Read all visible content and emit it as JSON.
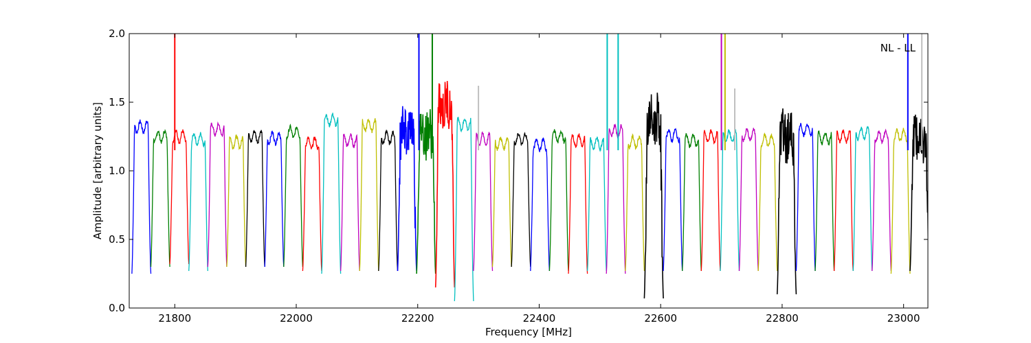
{
  "chart_data": {
    "type": "line",
    "title": "",
    "xlabel": "Frequency [MHz]",
    "ylabel": "Amplitude [arbitrary units]",
    "annotation": "NL - LL",
    "xlim": [
      21725,
      23040
    ],
    "ylim": [
      0.0,
      2.0
    ],
    "x_ticks": [
      21800,
      22000,
      22200,
      22400,
      22600,
      22800,
      23000
    ],
    "y_ticks": [
      0.0,
      0.5,
      1.0,
      1.5,
      2.0
    ],
    "x_tick_labels": [
      "21800",
      "22000",
      "22200",
      "22400",
      "22600",
      "22800",
      "23000"
    ],
    "y_tick_labels": [
      "0.0",
      "0.5",
      "1.0",
      "1.5",
      "2.0"
    ],
    "grid": false,
    "legend": "none",
    "channel_spacing_mhz": 31.25,
    "first_channel_center_mhz": 21745,
    "channel_count": 42,
    "color_cycle": [
      "#0000ff",
      "#007f00",
      "#ff0000",
      "#00bfbf",
      "#bf00bf",
      "#bfbf00",
      "#000000"
    ],
    "channel_peak_amplitudes": [
      1.32,
      1.25,
      1.25,
      1.23,
      1.3,
      1.21,
      1.25,
      1.24,
      1.28,
      1.2,
      1.37,
      1.22,
      1.33,
      1.24,
      1.3,
      1.28,
      1.48,
      1.34,
      1.23,
      1.2,
      1.23,
      1.19,
      1.25,
      1.22,
      1.2,
      1.29,
      1.21,
      1.35,
      1.26,
      1.22,
      1.25,
      1.25,
      1.26,
      1.22,
      1.26,
      1.3,
      1.24,
      1.25,
      1.27,
      1.25,
      1.26,
      1.24
    ],
    "channel_dip_amplitudes": [
      0.25,
      0.3,
      0.32,
      0.27,
      0.3,
      0.3,
      0.3,
      0.3,
      0.3,
      0.27,
      0.25,
      0.27,
      0.27,
      0.27,
      0.27,
      0.25,
      0.15,
      0.05,
      0.27,
      0.3,
      0.3,
      0.27,
      0.27,
      0.25,
      0.27,
      0.25,
      0.27,
      0.07,
      0.27,
      0.27,
      0.27,
      0.27,
      0.27,
      0.27,
      0.1,
      0.27,
      0.27,
      0.27,
      0.27,
      0.27,
      0.25,
      0.27
    ],
    "spikes": [
      {
        "x": 21800,
        "y": 2.0,
        "color": "#ff0000"
      },
      {
        "x": 22202,
        "y": 2.0,
        "color": "#0000ff"
      },
      {
        "x": 22224,
        "y": 2.0,
        "color": "#007f00"
      },
      {
        "x": 22300,
        "y": 1.62,
        "color": "#bfbfbf"
      },
      {
        "x": 22512,
        "y": 2.0,
        "color": "#00bfbf"
      },
      {
        "x": 22530,
        "y": 2.0,
        "color": "#00bfbf"
      },
      {
        "x": 22700,
        "y": 2.0,
        "color": "#bf00bf"
      },
      {
        "x": 22706,
        "y": 2.0,
        "color": "#bfbf00"
      },
      {
        "x": 22722,
        "y": 1.6,
        "color": "#bfbfbf"
      },
      {
        "x": 23007,
        "y": 2.0,
        "color": "#0000ff"
      },
      {
        "x": 23030,
        "y": 2.0,
        "color": "#bfbfbf"
      }
    ]
  }
}
